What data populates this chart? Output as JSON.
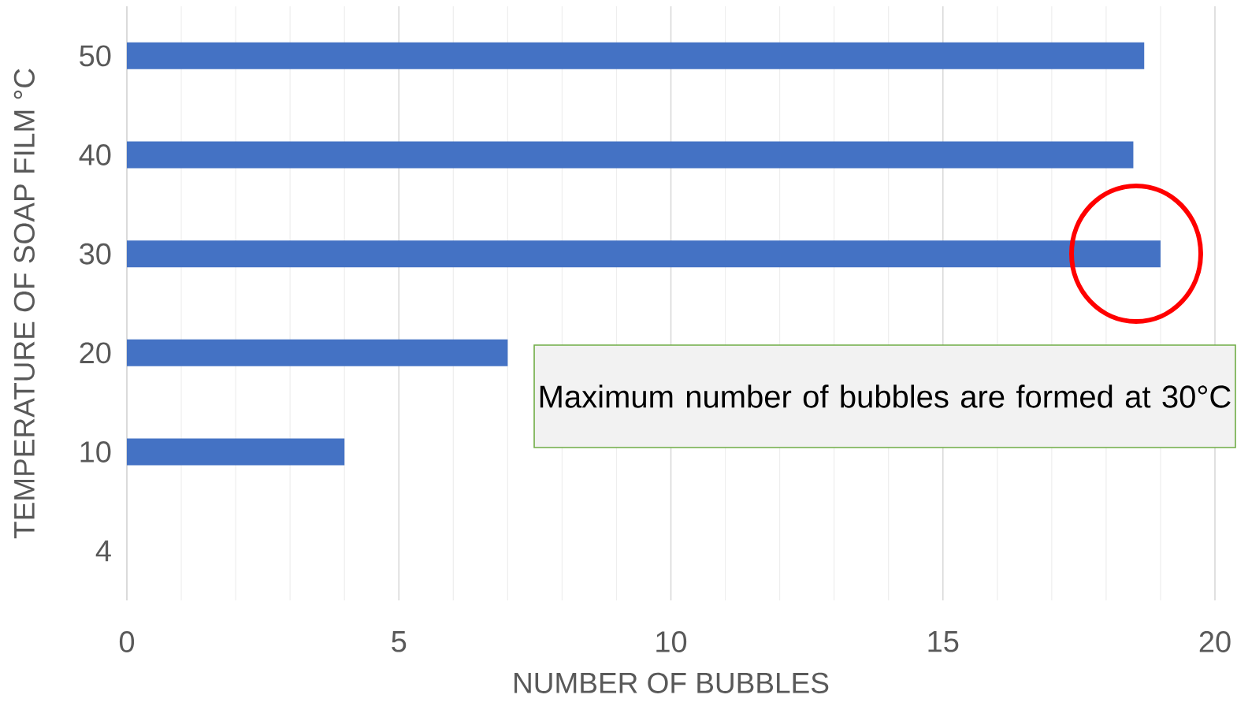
{
  "chart_data": {
    "type": "bar",
    "orientation": "horizontal",
    "xlabel": "NUMBER OF BUBBLES",
    "ylabel": "TEMPERATURE OF SOAP FILM °C",
    "categories": [
      "50",
      "40",
      "30",
      "20",
      "10",
      "4"
    ],
    "values": [
      18.7,
      18.5,
      19,
      7,
      4,
      0
    ],
    "color": "#4472c4",
    "xlim": [
      0,
      20
    ],
    "xticks": [
      0,
      5,
      10,
      15,
      20
    ],
    "grid": "x",
    "annotations": [
      "Maximum number of bubbles are formed at 30°C"
    ]
  }
}
